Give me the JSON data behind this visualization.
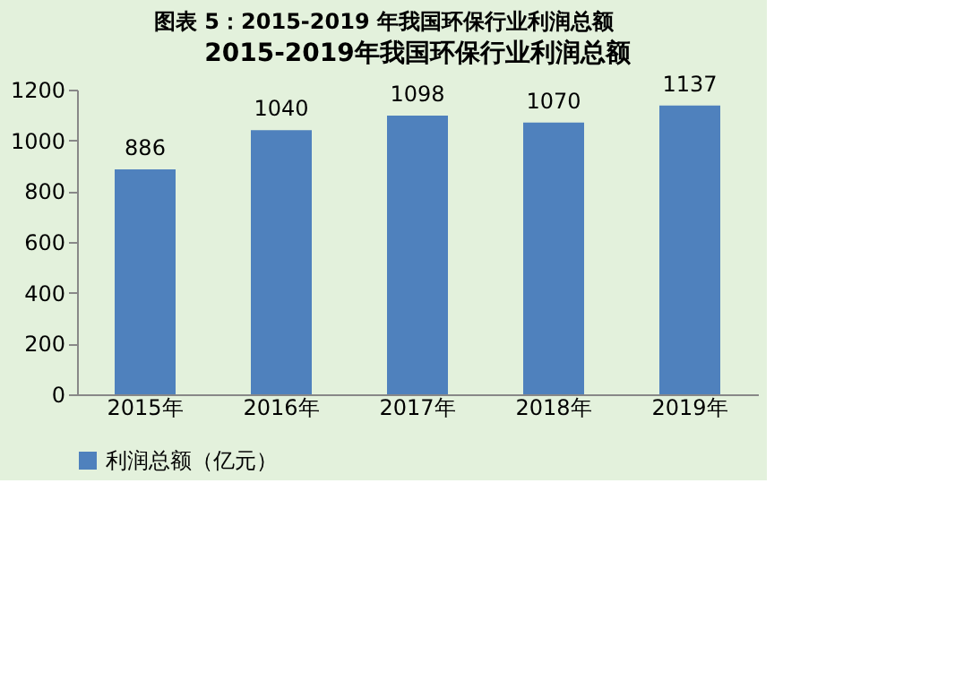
{
  "chart_data": {
    "type": "bar",
    "title": "2015-2019年我国环保行业利润总额",
    "annotations": [
      "图表 5：2015-2019 年我国环保行业利润总额"
    ],
    "categories": [
      "2015年",
      "2016年",
      "2017年",
      "2018年",
      "2019年"
    ],
    "series": [
      {
        "name": "利润总额（亿元）",
        "color": "#4f81bd",
        "values": [
          886,
          1040,
          1098,
          1070,
          1137
        ]
      }
    ],
    "ylim": [
      0,
      1200
    ],
    "yticks": [
      0,
      200,
      400,
      600,
      800,
      1000,
      1200
    ],
    "data_labels": true,
    "grid": false,
    "legend": "bottom"
  }
}
